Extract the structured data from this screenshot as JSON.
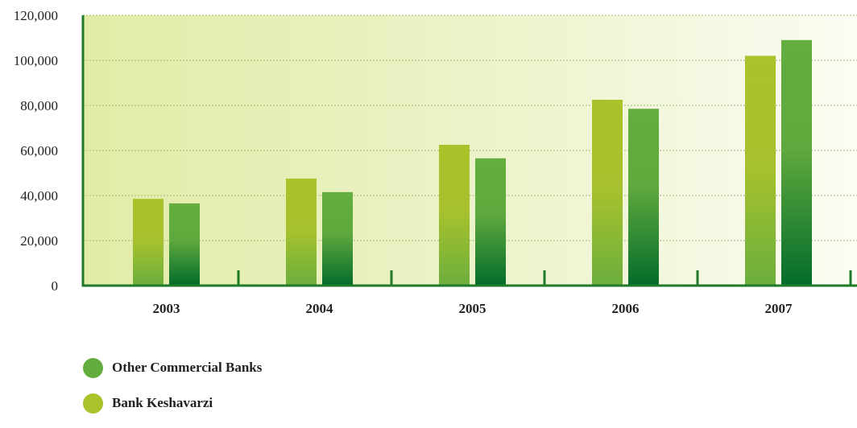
{
  "chart_data": {
    "type": "bar",
    "categories": [
      "2003",
      "2004",
      "2005",
      "2006",
      "2007"
    ],
    "series": [
      {
        "name": "Bank Keshavarzi",
        "values": [
          38500,
          47500,
          62500,
          82500,
          102000
        ],
        "color": "#abc22a"
      },
      {
        "name": "Other Commercial Banks",
        "values": [
          36500,
          41500,
          56500,
          78500,
          109000
        ],
        "color": "#62ad3e"
      }
    ],
    "ylim": [
      0,
      120000
    ],
    "yticks": [
      "0",
      "20,000",
      "40,000",
      "60,000",
      "80,000",
      "100,000",
      "120,000"
    ],
    "ytick_values": [
      0,
      20000,
      40000,
      60000,
      80000,
      100000,
      120000
    ],
    "grid": true,
    "legend": "bottom-left",
    "axis_color": "#1f7a2a"
  },
  "legend": {
    "items": [
      {
        "label": "Other Commercial Banks",
        "color": "#62ad3e"
      },
      {
        "label": "Bank Keshavarzi",
        "color": "#abc22a"
      }
    ]
  }
}
